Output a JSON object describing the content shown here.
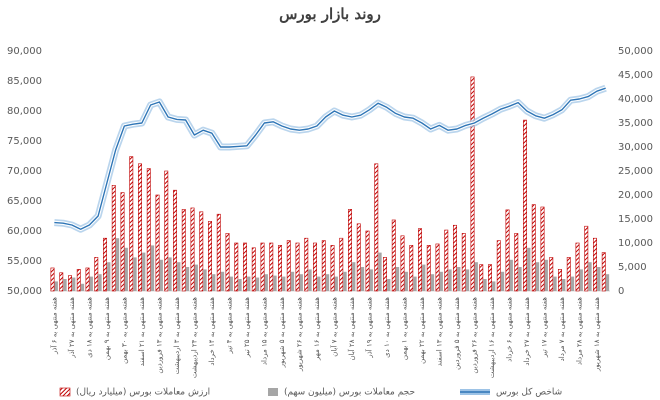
{
  "chart_data": {
    "type": "bar-line",
    "title": "روند بازار بورس",
    "categories": [
      "هفته منتهی به ۶ آذر",
      null,
      "هفته منتهی به ۲۷ آذر",
      null,
      "هفته منتهی به ۱۸ دی",
      null,
      "هفته منتهی به ۹ بهمن",
      null,
      "هفته منتهی به ۳۰ بهمن",
      null,
      "هفته منتهی به ۲۱ اسفند",
      null,
      "هفته منتهی به ۱۳ فروردین",
      null,
      "هفته منتهی به ۳ اردیبهشت",
      null,
      "هفته منتهی به ۲۴ اردیبهشت",
      null,
      "هفته منتهی به ۱۴ خرداد",
      null,
      "هفته منتهی به ۴ تیر",
      null,
      "هفته منتهی به ۲۵ تیر",
      null,
      "هفته منتهی به ۱۵ مرداد",
      null,
      "هفته منتهی به ۵ شهریور",
      null,
      "هفته منتهی به ۲۶ شهریور",
      null,
      "هفته منتهی به ۱۶ مهر",
      null,
      "هفته منتهی به ۷ آبان",
      null,
      "هفته منتهی به ۲۸ آبان",
      null,
      "هفته منتهی به ۱۹ آذر",
      null,
      "هفته منتهی به ۱۰ دی",
      null,
      "هفته منتهی به ۱ بهمن",
      null,
      "هفته منتهی به ۲۲ بهمن",
      null,
      "هفته منتهی به ۱۳ اسفند",
      null,
      "هفته منتهی به ۵ فروردین",
      null,
      "هفته منتهی به ۲۶ فروردین",
      null,
      "هفته منتهی به ۱۶ اردیبهشت",
      null,
      "هفته منتهی به ۶ خرداد",
      null,
      "هفته منتهی به ۲۷ خرداد",
      null,
      "هفته منتهی به ۱۷ تیر",
      null,
      "هفته منتهی به ۷ مرداد",
      null,
      "هفته منتهی به ۲۸ مرداد",
      null,
      "هفته منتهی به ۱۸ شهریور",
      null
    ],
    "series": [
      {
        "name": "ارزش معاملات بورس (میلیارد ریال)",
        "kind": "bar",
        "hatched": true,
        "color": "#c00000",
        "axis": "y2",
        "values": [
          4800,
          3800,
          3200,
          4500,
          4800,
          7000,
          11000,
          22000,
          20500,
          28000,
          26500,
          25500,
          20000,
          25000,
          21000,
          17000,
          17300,
          16500,
          14500,
          16000,
          12000,
          10000,
          10000,
          9000,
          10000,
          10000,
          9500,
          10500,
          10000,
          11000,
          10000,
          10500,
          9500,
          11000,
          17000,
          14000,
          12500,
          26500,
          7000,
          14800,
          11500,
          9500,
          13000,
          9500,
          9800,
          12700,
          13700,
          12000,
          44600,
          5500,
          5500,
          10500,
          16900,
          12000,
          35600,
          18000,
          17500,
          7000,
          4500,
          7000,
          10000,
          13500,
          11000,
          8000
        ]
      },
      {
        "name": "حجم معاملات بورس (میلیون سهم)",
        "kind": "bar",
        "color": "#a6a6a6",
        "axis": "y2",
        "values": [
          2000,
          2500,
          2800,
          1500,
          3000,
          3500,
          6000,
          11000,
          9000,
          7000,
          8000,
          9500,
          6500,
          7000,
          6000,
          5000,
          5500,
          4500,
          3500,
          4000,
          3000,
          2500,
          3000,
          2800,
          3500,
          3200,
          3000,
          4000,
          3500,
          4500,
          3000,
          3500,
          3000,
          4000,
          6000,
          5000,
          4500,
          8000,
          2500,
          5000,
          4000,
          3000,
          5500,
          3500,
          4000,
          4500,
          5000,
          4500,
          6000,
          2500,
          2000,
          4000,
          6500,
          5000,
          9000,
          6000,
          6500,
          3000,
          2500,
          3000,
          4500,
          6000,
          5000,
          3500
        ]
      },
      {
        "name": "شاخص کل بورس",
        "kind": "line",
        "color": "#2e75b6",
        "glow": "#9dc3e6",
        "values": [
          61400,
          61300,
          61000,
          60300,
          61000,
          62500,
          68000,
          73500,
          77500,
          77800,
          78000,
          81000,
          81500,
          79000,
          78600,
          78500,
          76000,
          76800,
          76300,
          74000,
          74000,
          74100,
          74200,
          76000,
          78000,
          78200,
          77500,
          77000,
          76800,
          77000,
          77500,
          79000,
          80000,
          79300,
          79000,
          79300,
          80200,
          81300,
          80600,
          79600,
          79000,
          78800,
          78000,
          77000,
          77600,
          76800,
          77000,
          77600,
          78000,
          78800,
          79500,
          80300,
          80800,
          81400,
          80000,
          79200,
          78800,
          79400,
          80200,
          81800,
          82000,
          82400,
          83300,
          83800
        ]
      }
    ],
    "ylim": [
      50000,
      90000
    ],
    "yticks": [
      {
        "value": 50000,
        "label": "50,000"
      },
      {
        "value": 55000,
        "label": "55,000"
      },
      {
        "value": 60000,
        "label": "60,000"
      },
      {
        "value": 65000,
        "label": "65,000"
      },
      {
        "value": 70000,
        "label": "70,000"
      },
      {
        "value": 75000,
        "label": "75,000"
      },
      {
        "value": 80000,
        "label": "80,000"
      },
      {
        "value": 85000,
        "label": "85,000"
      },
      {
        "value": 90000,
        "label": "90,000"
      }
    ],
    "y2lim": [
      0,
      50000
    ],
    "y2ticks": [
      0,
      {
        "value": 5000,
        "label": "5,000"
      },
      {
        "value": 10000,
        "label": "10,000"
      },
      {
        "value": 15000,
        "label": "15,000"
      },
      {
        "value": 20000,
        "label": "20,000"
      },
      {
        "value": 25000,
        "label": "25,000"
      },
      {
        "value": 30000,
        "label": "30,000"
      },
      {
        "value": 35000,
        "label": "35,000"
      },
      {
        "value": 40000,
        "label": "40,000"
      },
      {
        "value": 45000,
        "label": "45,000"
      },
      {
        "value": 50000,
        "label": "50,000"
      }
    ],
    "legend": "bottom"
  }
}
